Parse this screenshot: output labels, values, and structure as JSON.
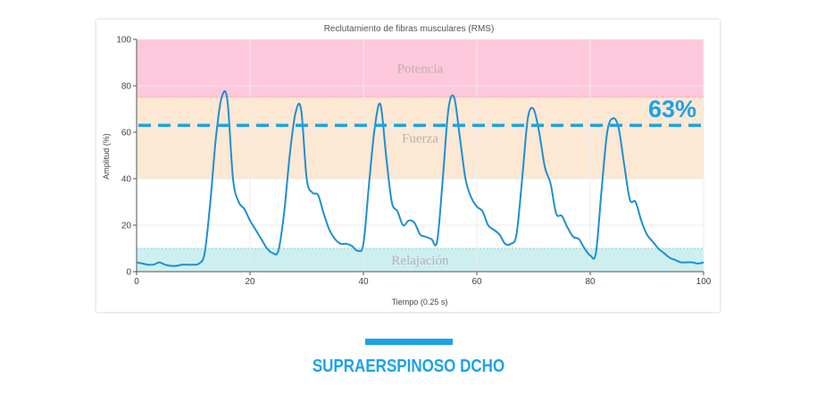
{
  "chart_data": {
    "type": "line",
    "title": "Reclutamiento de fibras musculares (RMS)",
    "xlabel": "Tiempo (0.25 s)",
    "ylabel": "Amplitud (%)",
    "xlim": [
      0,
      100
    ],
    "ylim": [
      0,
      100
    ],
    "x_ticks": [
      0,
      20,
      40,
      60,
      80,
      100
    ],
    "y_ticks": [
      0,
      20,
      40,
      60,
      80,
      100
    ],
    "grid": true,
    "bands": [
      {
        "label": "Potencia",
        "from": 75,
        "to": 100,
        "color": "#fec8dc",
        "border": "#f07aa8"
      },
      {
        "label": "Fuerza",
        "from": 40,
        "to": 75,
        "color": "#fde8d4",
        "border": "#f3c79a"
      },
      {
        "label": "Relajación",
        "from": 0,
        "to": 10,
        "color": "#cdeff0",
        "border": "#8fd2d6"
      }
    ],
    "threshold": {
      "value": 63,
      "label": "63%",
      "color": "#1aa3e8"
    },
    "series": [
      {
        "color": "#1f8fd0",
        "points": [
          [
            0,
            4
          ],
          [
            1,
            3.5
          ],
          [
            2,
            3
          ],
          [
            3,
            3
          ],
          [
            4,
            4
          ],
          [
            5,
            3
          ],
          [
            6,
            2.5
          ],
          [
            7,
            2.5
          ],
          [
            8,
            3
          ],
          [
            9,
            3
          ],
          [
            10,
            3
          ],
          [
            11,
            3.5
          ],
          [
            12,
            8
          ],
          [
            13,
            30
          ],
          [
            14,
            58
          ],
          [
            15,
            75
          ],
          [
            16,
            74
          ],
          [
            17,
            40
          ],
          [
            18,
            30
          ],
          [
            19,
            27
          ],
          [
            20,
            22
          ],
          [
            21,
            18
          ],
          [
            22,
            14
          ],
          [
            23,
            10
          ],
          [
            24,
            8
          ],
          [
            25,
            9
          ],
          [
            26,
            25
          ],
          [
            27,
            50
          ],
          [
            28,
            68
          ],
          [
            29,
            70
          ],
          [
            30,
            40
          ],
          [
            31,
            34
          ],
          [
            32,
            33
          ],
          [
            33,
            25
          ],
          [
            34,
            18
          ],
          [
            35,
            14
          ],
          [
            36,
            12
          ],
          [
            37,
            12
          ],
          [
            38,
            11
          ],
          [
            39,
            9
          ],
          [
            40,
            12
          ],
          [
            41,
            38
          ],
          [
            42,
            62
          ],
          [
            43,
            72
          ],
          [
            44,
            50
          ],
          [
            45,
            30
          ],
          [
            46,
            26
          ],
          [
            47,
            20
          ],
          [
            48,
            22
          ],
          [
            49,
            21
          ],
          [
            50,
            16
          ],
          [
            51,
            15
          ],
          [
            52,
            14
          ],
          [
            53,
            13
          ],
          [
            54,
            40
          ],
          [
            55,
            70
          ],
          [
            56,
            75
          ],
          [
            57,
            58
          ],
          [
            58,
            40
          ],
          [
            59,
            32
          ],
          [
            60,
            28
          ],
          [
            61,
            26
          ],
          [
            62,
            20
          ],
          [
            63,
            18
          ],
          [
            64,
            16
          ],
          [
            65,
            12
          ],
          [
            66,
            12
          ],
          [
            67,
            16
          ],
          [
            68,
            40
          ],
          [
            69,
            66
          ],
          [
            70,
            70
          ],
          [
            71,
            60
          ],
          [
            72,
            45
          ],
          [
            73,
            38
          ],
          [
            74,
            25
          ],
          [
            75,
            24
          ],
          [
            76,
            19
          ],
          [
            77,
            15
          ],
          [
            78,
            14
          ],
          [
            79,
            10
          ],
          [
            80,
            7
          ],
          [
            81,
            8
          ],
          [
            82,
            35
          ],
          [
            83,
            60
          ],
          [
            84,
            66
          ],
          [
            85,
            62
          ],
          [
            86,
            46
          ],
          [
            87,
            31
          ],
          [
            88,
            30
          ],
          [
            89,
            22
          ],
          [
            90,
            16
          ],
          [
            91,
            13
          ],
          [
            92,
            10
          ],
          [
            93,
            8
          ],
          [
            94,
            6
          ],
          [
            95,
            5
          ],
          [
            96,
            4
          ],
          [
            97,
            4
          ],
          [
            98,
            4
          ],
          [
            99,
            3.5
          ],
          [
            100,
            4
          ]
        ]
      }
    ]
  },
  "caption": {
    "text": "SUPRAERSPINOSO DCHO",
    "color": "#1aa3e8"
  }
}
